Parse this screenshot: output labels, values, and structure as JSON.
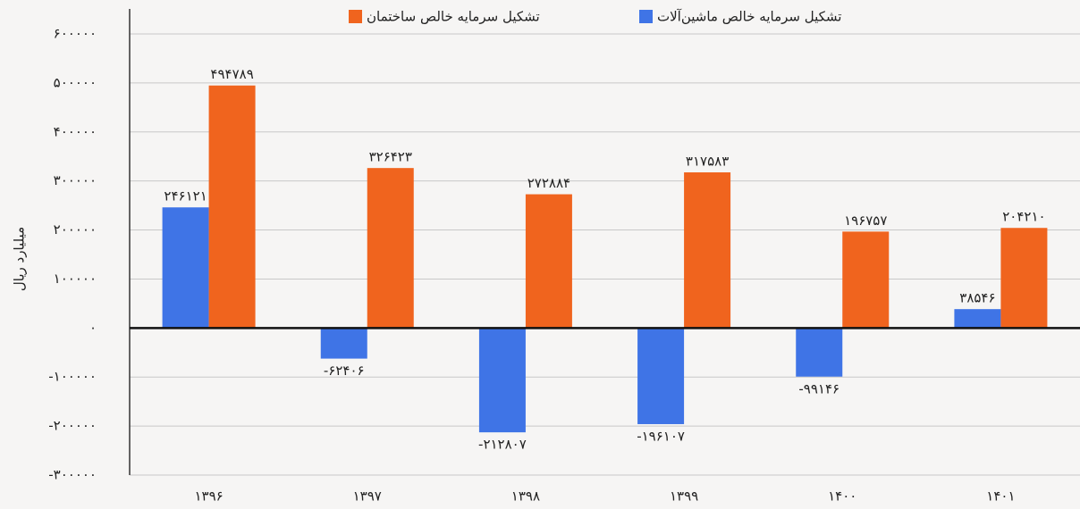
{
  "chart_data": {
    "type": "bar",
    "y_label": "میلیارد ریال",
    "categories": [
      "۱۳۹۶",
      "۱۳۹۷",
      "۱۳۹۸",
      "۱۳۹۹",
      "۱۴۰۰",
      "۱۴۰۱"
    ],
    "series": [
      {
        "name": "تشکیل سرمایه خالص ماشین‌آلات",
        "color": "#3f74e6",
        "values": [
          246121,
          -62406,
          -212807,
          -196107,
          -99146,
          38546
        ],
        "value_labels": [
          "۲۴۶۱۲۱",
          "-۶۲۴۰۶",
          "-۲۱۲۸۰۷",
          "-۱۹۶۱۰۷",
          "-۹۹۱۴۶",
          "۳۸۵۴۶"
        ]
      },
      {
        "name": "تشکیل سرمایه خالص ساختمان",
        "color": "#f0641e",
        "values": [
          494789,
          326423,
          272884,
          317583,
          196757,
          204210
        ],
        "value_labels": [
          "۴۹۴۷۸۹",
          "۳۲۶۴۲۳",
          "۲۷۲۸۸۴",
          "۳۱۷۵۸۳",
          "۱۹۶۷۵۷",
          "۲۰۴۲۱۰"
        ]
      }
    ],
    "ylim": [
      -300000,
      600000
    ],
    "yticks": [
      {
        "value": -300000,
        "label": "-۳۰۰۰۰۰"
      },
      {
        "value": -200000,
        "label": "-۲۰۰۰۰۰"
      },
      {
        "value": -100000,
        "label": "-۱۰۰۰۰۰"
      },
      {
        "value": 0,
        "label": "۰"
      },
      {
        "value": 100000,
        "label": "۱۰۰۰۰۰"
      },
      {
        "value": 200000,
        "label": "۲۰۰۰۰۰"
      },
      {
        "value": 300000,
        "label": "۳۰۰۰۰۰"
      },
      {
        "value": 400000,
        "label": "۴۰۰۰۰۰"
      },
      {
        "value": 500000,
        "label": "۵۰۰۰۰۰"
      },
      {
        "value": 600000,
        "label": "۶۰۰۰۰۰"
      }
    ],
    "grid": true,
    "legend": "top"
  }
}
